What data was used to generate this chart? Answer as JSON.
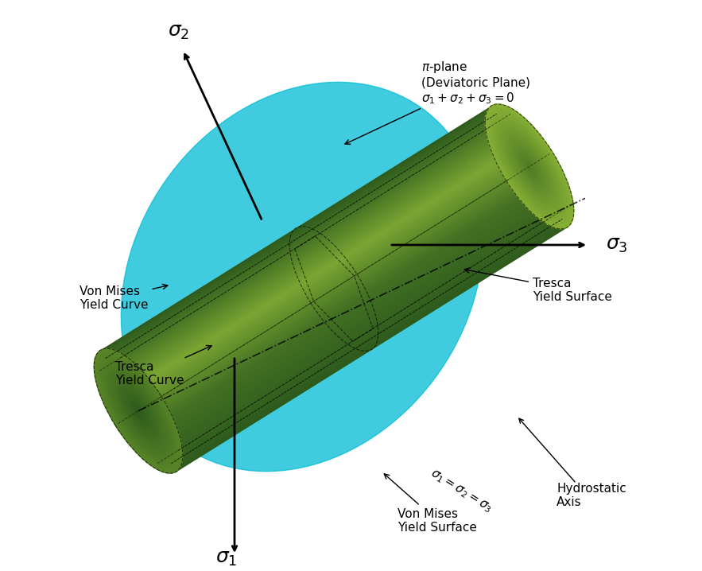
{
  "title": "Von Mises Yield Surface",
  "background_color": "#ffffff",
  "cylinder_color_light": "#9dc63b",
  "cylinder_color_dark": "#2d5a1b",
  "tresca_color_light": "#7ab32e",
  "tresca_color_dark": "#1a3a0a",
  "pi_plane_color": "#00bcd4",
  "pi_plane_alpha": 0.7,
  "axis_color": "#000000",
  "dashed_color": "#333333",
  "hydrostatic_color": "#000000",
  "font_size_labels": 14,
  "font_size_annotations": 11,
  "annotations": {
    "von_mises_surface": "Von Mises\nYield Surface",
    "tresca_surface": "Tresca\nYield Surface",
    "von_mises_curve": "Von Mises\nYield Curve",
    "tresca_curve": "Tresca\nYield Curve",
    "hydrostatic_axis": "Hydrostatic\nAxis",
    "pi_plane": "π-plane\n(Deviatoric Plane)\nσ₁ + σ₂ + σ₃ = 0",
    "hydrostatic_label": "σ₁ = σ₂ = σ₃",
    "sigma1": "σ₁",
    "sigma2": "ς₂",
    "sigma3": "σ₃"
  }
}
